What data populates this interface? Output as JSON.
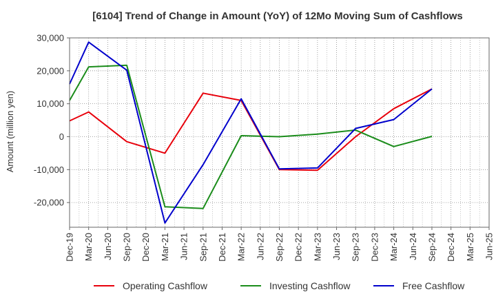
{
  "chart_data": {
    "type": "line",
    "title": "[6104]  Trend of Change in Amount (YoY) of 12Mo Moving Sum of Cashflows",
    "ylabel": "Amount (million yen)",
    "xlabel": "",
    "ylim": [
      -27500,
      30000
    ],
    "yticks": [
      30000,
      20000,
      10000,
      0,
      -10000,
      -20000
    ],
    "ytick_labels": [
      "30,000",
      "20,000",
      "10,000",
      "0",
      "-10,000",
      "-20,000"
    ],
    "categories": [
      "Dec-19",
      "Mar-20",
      "Jun-20",
      "Sep-20",
      "Dec-20",
      "Mar-21",
      "Jun-21",
      "Sep-21",
      "Dec-21",
      "Mar-22",
      "Jun-22",
      "Sep-22",
      "Dec-22",
      "Mar-23",
      "Jun-23",
      "Sep-23",
      "Dec-23",
      "Mar-24",
      "Jun-24",
      "Sep-24",
      "Dec-24",
      "Mar-25"
    ],
    "x_end_label": "Jun-25",
    "grid": true,
    "legend_position": "bottom",
    "series": [
      {
        "name": "Operating Cashflow",
        "color": "#e8000b",
        "values": [
          4800,
          7500,
          null,
          -1500,
          null,
          -5000,
          null,
          13200,
          null,
          11000,
          null,
          -10000,
          null,
          -10200,
          null,
          0,
          null,
          8500,
          null,
          14500,
          null,
          null
        ]
      },
      {
        "name": "Investing Cashflow",
        "color": "#1a8c1a",
        "values": [
          11000,
          21200,
          null,
          21700,
          null,
          -21300,
          null,
          -21800,
          null,
          300,
          null,
          0,
          null,
          800,
          null,
          2000,
          null,
          -3000,
          null,
          100,
          null,
          null
        ]
      },
      {
        "name": "Free Cashflow",
        "color": "#0000cc",
        "values": [
          16000,
          28700,
          null,
          20200,
          null,
          -26200,
          null,
          -8500,
          null,
          11500,
          null,
          -9800,
          null,
          -9500,
          null,
          2500,
          null,
          5200,
          null,
          14500,
          null,
          null
        ]
      }
    ]
  }
}
